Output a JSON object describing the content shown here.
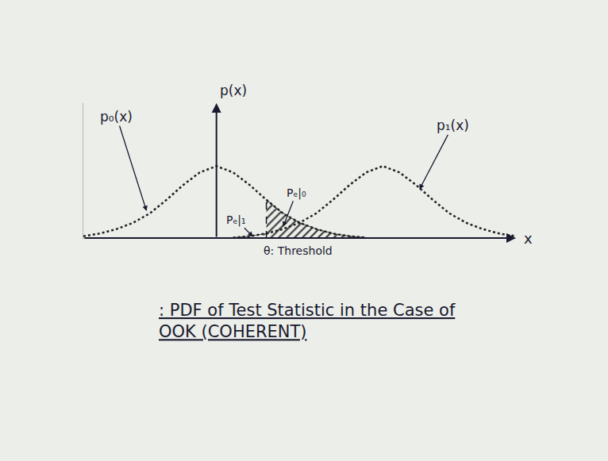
{
  "chart_data": {
    "type": "line",
    "title": ": PDF of Test Statistic in the Case of OOK (COHERENT)",
    "x_label": "x",
    "y_label": "p(x)",
    "xlim": [
      -0.8,
      1.8
    ],
    "ylim": [
      0,
      3
    ],
    "tick_labels": false,
    "threshold": {
      "value": 0.3,
      "label": "θ: Threshold"
    },
    "series": [
      {
        "name": "p₀(x)",
        "type": "line",
        "color": "#222222",
        "line_style": "dot",
        "x": [
          -0.8,
          -0.7,
          -0.6,
          -0.5,
          -0.4,
          -0.3,
          -0.2,
          -0.1,
          0,
          0.1,
          0.2,
          0.3,
          0.4,
          0.5,
          0.6,
          0.7,
          0.8,
          0.9
        ],
        "values": [
          0.04,
          0.1,
          0.2,
          0.34,
          0.55,
          0.85,
          1.18,
          1.46,
          1.6,
          1.46,
          1.18,
          0.85,
          0.55,
          0.34,
          0.2,
          0.1,
          0.04,
          0.01
        ]
      },
      {
        "name": "p₁(x)",
        "type": "line",
        "color": "#222222",
        "line_style": "dot",
        "x": [
          0.1,
          0.2,
          0.3,
          0.4,
          0.5,
          0.6,
          0.7,
          0.8,
          0.9,
          1.0,
          1.1,
          1.2,
          1.3,
          1.4,
          1.5,
          1.6,
          1.7,
          1.8
        ],
        "values": [
          0.01,
          0.04,
          0.1,
          0.2,
          0.34,
          0.55,
          0.85,
          1.18,
          1.46,
          1.6,
          1.46,
          1.18,
          0.85,
          0.55,
          0.34,
          0.2,
          0.1,
          0.04
        ]
      },
      {
        "name": "Pₑ|₀",
        "type": "area",
        "color": "#333333",
        "marker": "hatch",
        "x": [
          0.3,
          0.4,
          0.5,
          0.6,
          0.7,
          0.8,
          0.9
        ],
        "values": [
          0.85,
          0.55,
          0.34,
          0.2,
          0.1,
          0.04,
          0.01
        ]
      },
      {
        "name": "Pₑ|₁",
        "type": "area",
        "color": "#555555",
        "marker": "dots",
        "x": [
          0.1,
          0.2,
          0.3
        ],
        "values": [
          0.01,
          0.04,
          0.1
        ]
      }
    ]
  }
}
